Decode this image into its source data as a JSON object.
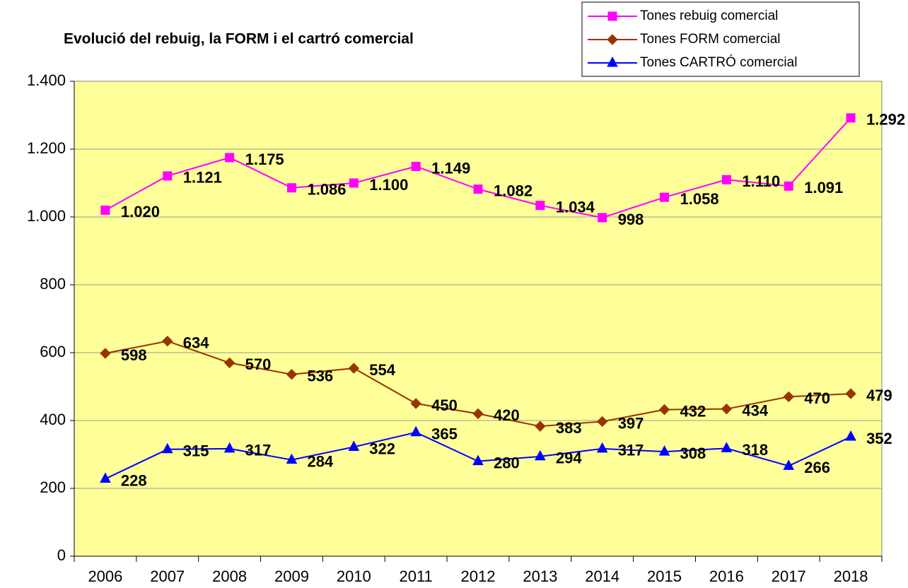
{
  "chart_data": {
    "type": "line",
    "title": "Evolució del rebuig, la FORM i el cartró comercial",
    "categories": [
      "2006",
      "2007",
      "2008",
      "2009",
      "2010",
      "2011",
      "2012",
      "2013",
      "2014",
      "2015",
      "2016",
      "2017",
      "2018"
    ],
    "series": [
      {
        "name": "Tones rebuig comercial",
        "color": "#ff00ff",
        "marker": "square",
        "values": [
          1020,
          1121,
          1175,
          1086,
          1100,
          1149,
          1082,
          1034,
          998,
          1058,
          1110,
          1091,
          1292
        ],
        "value_labels": [
          "1.020",
          "1.121",
          "1.175",
          "1.086",
          "1.100",
          "1.149",
          "1.082",
          "1.034",
          "998",
          "1.058",
          "1.110",
          "1.091",
          "1.292"
        ]
      },
      {
        "name": "Tones FORM comercial",
        "color": "#993300",
        "marker": "diamond",
        "values": [
          598,
          634,
          570,
          536,
          554,
          450,
          420,
          383,
          397,
          432,
          434,
          470,
          479
        ]
      },
      {
        "name": "Tones CARTRÓ comercial",
        "color": "#0000ff",
        "marker": "triangle",
        "values": [
          228,
          315,
          317,
          284,
          322,
          365,
          280,
          294,
          317,
          308,
          318,
          266,
          352
        ]
      }
    ],
    "ylim": [
      0,
      1400
    ],
    "yticks": [
      0,
      200,
      400,
      600,
      800,
      {
        "value": 1000,
        "label": "1.000"
      },
      {
        "value": 1200,
        "label": "1.200"
      },
      {
        "value": 1400,
        "label": "1.400"
      }
    ],
    "grid": true,
    "legend": "top-right",
    "background": "#ffff99"
  }
}
